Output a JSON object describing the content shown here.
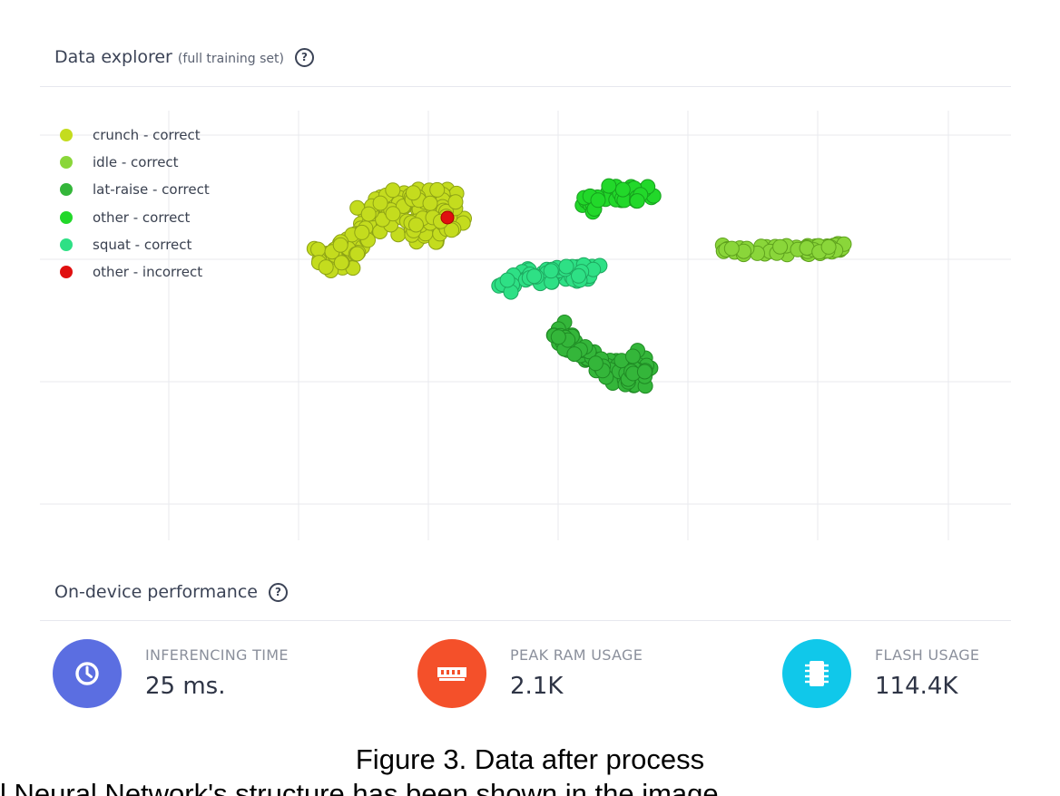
{
  "explorer": {
    "title": "Data explorer",
    "subtitle": "(full training set)",
    "help": "?"
  },
  "chart_data": {
    "type": "scatter",
    "grid": true,
    "legend_placement": "top-left",
    "series": [
      {
        "name": "crunch - correct",
        "color": "#c4dc1e"
      },
      {
        "name": "idle - correct",
        "color": "#8ad63a"
      },
      {
        "name": "lat-raise - correct",
        "color": "#34b63a"
      },
      {
        "name": "other - correct",
        "color": "#22d82a"
      },
      {
        "name": "squat - correct",
        "color": "#2ee085"
      },
      {
        "name": "other - incorrect",
        "color": "#e01010"
      }
    ]
  },
  "performance": {
    "title": "On-device performance",
    "help": "?",
    "metrics": [
      {
        "label": "INFERENCING TIME",
        "value": "25 ms.",
        "icon": "clock-icon",
        "color": "#5b6ee1"
      },
      {
        "label": "PEAK RAM USAGE",
        "value": "2.1K",
        "icon": "memory-icon",
        "color": "#f4502a"
      },
      {
        "label": "FLASH USAGE",
        "value": "114.4K",
        "icon": "chip-icon",
        "color": "#10c8ea"
      }
    ]
  },
  "caption": "Figure 3. Data after process",
  "cut_text": "l Neural Network's structure has been shown in the image"
}
